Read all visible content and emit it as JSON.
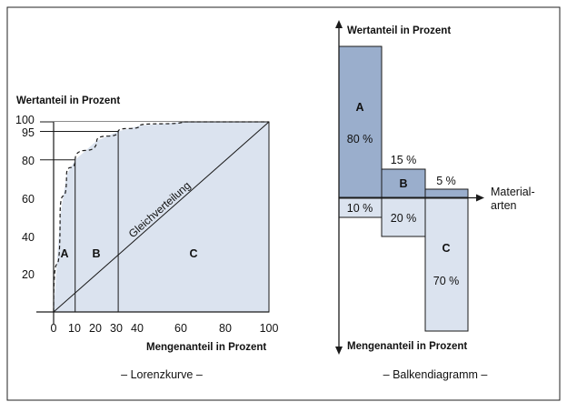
{
  "colors": {
    "fill_light": "#dbe3ef",
    "fill_dark": "#9aaecc",
    "stroke": "#1a1a1a",
    "dashed": "#1a1a1a"
  },
  "lorenz": {
    "ylabel": "Wertanteil in Prozent",
    "xlabel": "Mengenanteil in Prozent",
    "caption": "– Lorenzkurve –",
    "diagonal_label": "Gleichverteilung",
    "region_labels": [
      "A",
      "B",
      "C"
    ],
    "y_ticks": [
      "100",
      "95",
      "80",
      "60",
      "40",
      "20"
    ],
    "x_ticks": [
      "0",
      "10",
      "20",
      "30",
      "40",
      "60",
      "80",
      "100"
    ]
  },
  "balken": {
    "ylabel_top": "Wertanteil in Prozent",
    "ylabel_bottom": "Mengenanteil in Prozent",
    "xlabel_line1": "Material-",
    "xlabel_line2": "arten",
    "caption": "– Balkendiagramm –",
    "categories": [
      {
        "name": "A",
        "wert": "80 %",
        "menge": "10 %"
      },
      {
        "name": "B",
        "wert": "15 %",
        "menge": "20 %"
      },
      {
        "name": "C",
        "wert": "5 %",
        "menge": "70 %"
      }
    ]
  },
  "chart_data": [
    {
      "type": "line",
      "title": "– Lorenzkurve –",
      "xlabel": "Mengenanteil in Prozent",
      "ylabel": "Wertanteil in Prozent",
      "xlim": [
        0,
        100
      ],
      "ylim": [
        0,
        100
      ],
      "series": [
        {
          "name": "Gleichverteilung",
          "x": [
            0,
            100
          ],
          "y": [
            0,
            100
          ]
        },
        {
          "x": [
            0,
            3,
            6,
            10,
            20,
            30,
            40,
            60,
            80,
            100
          ],
          "y": [
            0,
            50,
            72,
            80,
            90,
            95,
            98,
            100,
            100,
            100
          ]
        }
      ]
    },
    {
      "type": "bar",
      "title": "– Balkendiagramm –",
      "categories": [
        "A",
        "B",
        "C"
      ],
      "series": [
        {
          "name": "Wertanteil in Prozent",
          "values": [
            80,
            15,
            5
          ]
        },
        {
          "name": "Mengenanteil in Prozent",
          "values": [
            10,
            20,
            70
          ]
        }
      ]
    }
  ]
}
